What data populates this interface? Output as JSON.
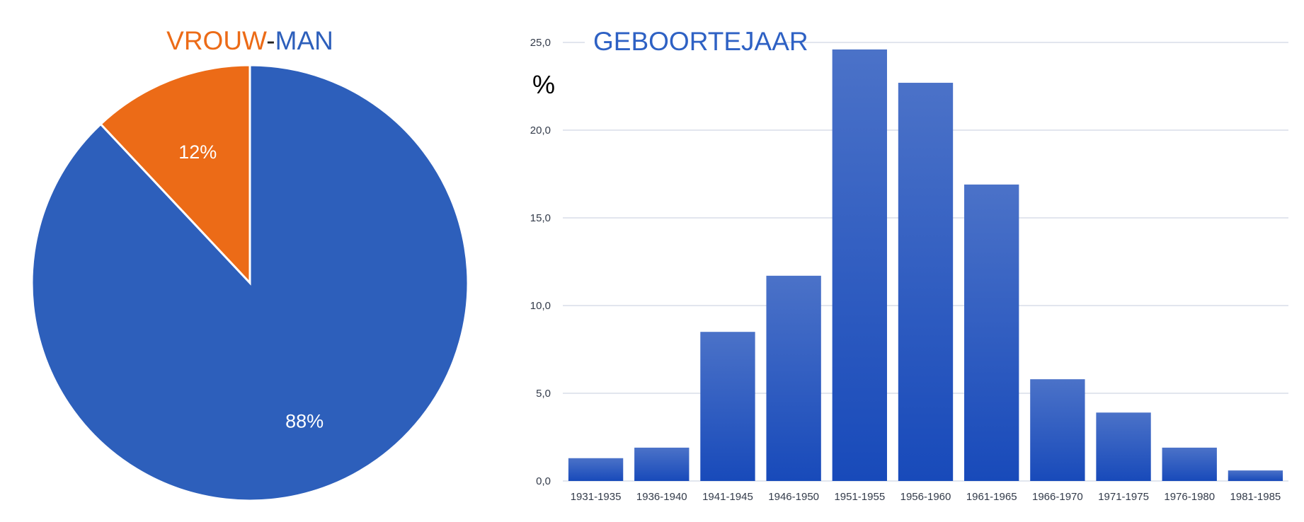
{
  "colors": {
    "vrouw": "#ec6b17",
    "man": "#2d5fbb",
    "bar_top": "#4b72c8",
    "bar_bottom": "#184aba",
    "grid": "#d9dde8",
    "title_blue": "#2e61c4"
  },
  "chart_data": [
    {
      "type": "pie",
      "title_parts": [
        "VROUW",
        "-",
        "MAN"
      ],
      "slices": [
        {
          "label": "VROUW",
          "value": 12,
          "display": "12%"
        },
        {
          "label": "MAN",
          "value": 88,
          "display": "88%"
        }
      ]
    },
    {
      "type": "bar",
      "title": "GEBOORTEJAAR",
      "ylabel": "%",
      "ylim": [
        0,
        25
      ],
      "yticks": [
        "0,0",
        "5,0",
        "10,0",
        "15,0",
        "20,0",
        "25,0"
      ],
      "grid": true,
      "categories": [
        "1931-1935",
        "1936-1940",
        "1941-1945",
        "1946-1950",
        "1951-1955",
        "1956-1960",
        "1961-1965",
        "1966-1970",
        "1971-1975",
        "1976-1980",
        "1981-1985"
      ],
      "values": [
        1.3,
        1.9,
        8.5,
        11.7,
        24.6,
        22.7,
        16.9,
        5.8,
        3.9,
        1.9,
        0.6
      ]
    }
  ]
}
